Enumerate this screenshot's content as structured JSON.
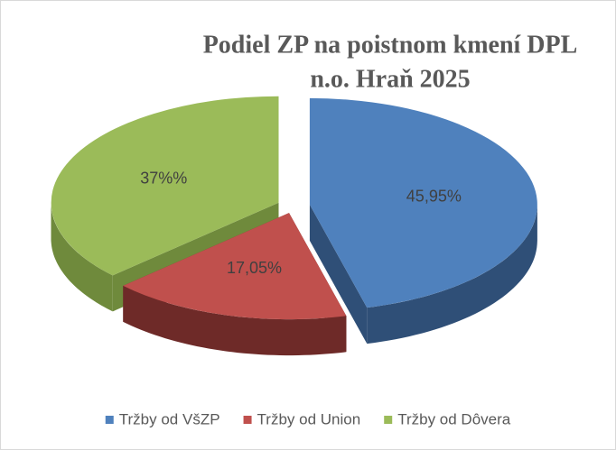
{
  "chart_data": {
    "type": "pie3d",
    "title": [
      "Podiel ZP na poistnom kmení DPL",
      "n.o. Hraň 2025"
    ],
    "categories": [
      "Tržby od VšZP",
      "Tržby od Union",
      "Tržby od Dôvera"
    ],
    "values": [
      45.95,
      17.05,
      37
    ],
    "value_labels": [
      "45,95%",
      "17,05%",
      "37%%"
    ],
    "colors": [
      "#4f81bd",
      "#c0504d",
      "#9bbb59"
    ],
    "side_colors": [
      "#2f4f77",
      "#6e2a28",
      "#6f8a3c"
    ],
    "legend": "bottom"
  }
}
